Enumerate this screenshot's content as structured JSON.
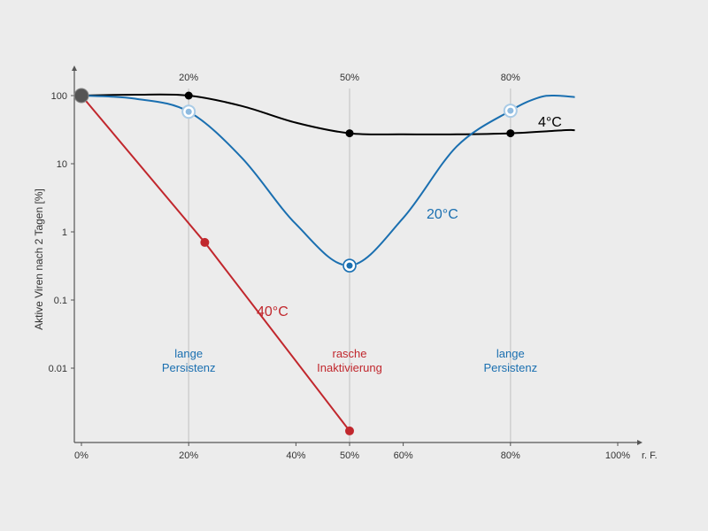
{
  "chart_data": {
    "type": "line",
    "title": "",
    "ylabel": "Aktive Viren nach 2 Tagen [%]",
    "xlabel": "r. F.",
    "y_scale": "log",
    "xlim": [
      0,
      100
    ],
    "ylim": [
      0.001,
      150
    ],
    "x_ticks": [
      {
        "v": 0,
        "label": "0%"
      },
      {
        "v": 20,
        "label": "20%"
      },
      {
        "v": 40,
        "label": "40%"
      },
      {
        "v": 50,
        "label": "50%"
      },
      {
        "v": 60,
        "label": "60%"
      },
      {
        "v": 80,
        "label": "80%"
      },
      {
        "v": 100,
        "label": "100%"
      }
    ],
    "x_unit_label": "r. F.",
    "y_ticks": [
      {
        "v": 100,
        "label": "100"
      },
      {
        "v": 10,
        "label": "10"
      },
      {
        "v": 1,
        "label": "1"
      },
      {
        "v": 0.1,
        "label": "0.1"
      },
      {
        "v": 0.01,
        "label": "0.01"
      }
    ],
    "top_ticks": [
      {
        "v": 20,
        "label": "20%"
      },
      {
        "v": 50,
        "label": "50%"
      },
      {
        "v": 80,
        "label": "80%"
      }
    ],
    "vertical_guides": [
      20,
      50,
      80
    ],
    "series": [
      {
        "name": "4°C",
        "color": "#000000",
        "curve": [
          [
            0,
            100
          ],
          [
            10,
            103
          ],
          [
            20,
            100
          ],
          [
            30,
            70
          ],
          [
            40,
            40
          ],
          [
            50,
            28
          ],
          [
            60,
            27
          ],
          [
            70,
            27
          ],
          [
            80,
            28
          ],
          [
            90,
            31
          ],
          [
            92,
            31
          ]
        ],
        "markers": [
          [
            20,
            100
          ],
          [
            50,
            28
          ],
          [
            80,
            28
          ]
        ],
        "marker_style": "filled"
      },
      {
        "name": "20°C",
        "color": "#1a6fb0",
        "curve": [
          [
            0,
            100
          ],
          [
            10,
            90
          ],
          [
            20,
            58
          ],
          [
            30,
            12
          ],
          [
            40,
            1.3
          ],
          [
            50,
            0.32
          ],
          [
            60,
            1.6
          ],
          [
            70,
            18
          ],
          [
            80,
            60
          ],
          [
            85,
            92
          ],
          [
            88,
            100
          ],
          [
            92,
            95
          ]
        ],
        "markers": [
          [
            20,
            58
          ],
          [
            50,
            0.32
          ],
          [
            80,
            60
          ]
        ],
        "marker_style": "ring"
      },
      {
        "name": "40°C",
        "color": "#c1272d",
        "curve": [
          [
            0,
            100
          ],
          [
            23,
            0.7
          ],
          [
            50,
            0.0012
          ]
        ],
        "markers": [
          [
            23,
            0.7
          ],
          [
            50,
            0.0012
          ]
        ],
        "marker_style": "filled"
      }
    ],
    "start_point": [
      0,
      100
    ],
    "zones": [
      {
        "lines": [
          "lange",
          "Persistenz"
        ],
        "color": "#1a6fb0"
      },
      {
        "lines": [
          "rasche",
          "Inaktivierung"
        ],
        "color": "#c1272d"
      },
      {
        "lines": [
          "lange",
          "Persistenz"
        ],
        "color": "#1a6fb0"
      }
    ]
  }
}
